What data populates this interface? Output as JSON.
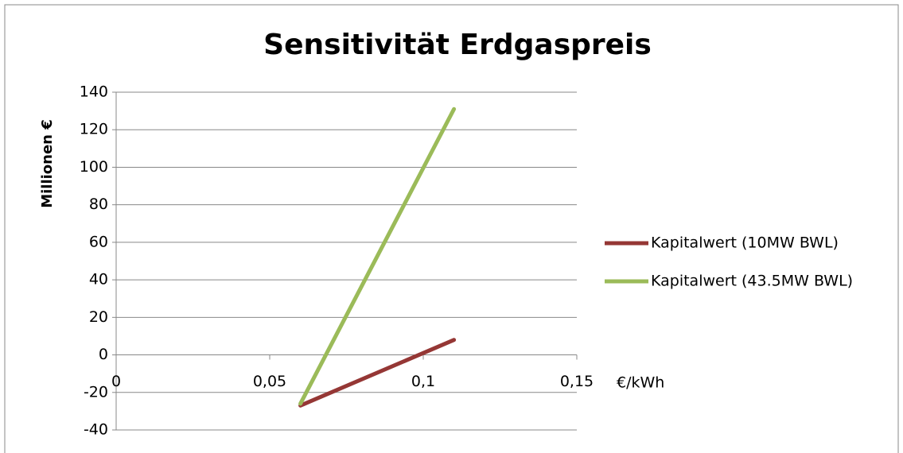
{
  "chart_data": {
    "type": "line",
    "title": "Sensitivität Erdgaspreis",
    "y_label": "Millionen €",
    "x_label": "€/kWh",
    "series": [
      {
        "name": "Kapitalwert (10MW BWL)",
        "color": "#953735",
        "x": [
          0.06,
          0.11
        ],
        "values": [
          -27,
          8
        ]
      },
      {
        "name": "Kapitalwert (43.5MW BWL)",
        "color": "#9bbb59",
        "x": [
          0.06,
          0.11
        ],
        "values": [
          -26,
          131
        ]
      }
    ],
    "xlim": [
      0,
      0.15
    ],
    "xticks": [
      0,
      {
        "value": 0.05,
        "label": "0,05"
      },
      {
        "value": 0.1,
        "label": "0,1"
      },
      {
        "value": 0.15,
        "label": "0,15"
      }
    ],
    "ylim": [
      -40,
      140
    ],
    "yticks": [
      -40,
      -20,
      0,
      20,
      40,
      60,
      80,
      100,
      120,
      140
    ],
    "grid": true,
    "legend": "right"
  }
}
